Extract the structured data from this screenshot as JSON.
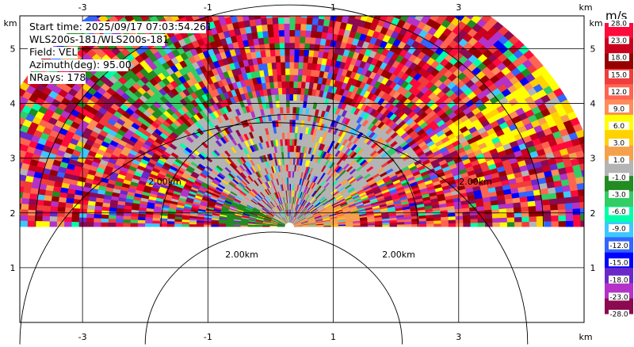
{
  "info": {
    "start_time": "Start time: 2025/09/17 07:03:54.261",
    "instrument": "WLS200s-181/WLS200s-181",
    "field": "Field: VEL",
    "azimuth": "Azimuth(deg): 95.00",
    "nrays": "NRays: 178"
  },
  "chart_data": {
    "type": "heatmap",
    "projection": "RHI",
    "x_unit": "km",
    "y_unit": "km",
    "x_ticks": [
      "-3",
      "-1",
      "1",
      "3"
    ],
    "y_ticks": [
      "1",
      "2",
      "3",
      "4",
      "5"
    ],
    "xlim": [
      -4.0,
      5.0
    ],
    "ylim": [
      0.0,
      5.6
    ],
    "origin": {
      "x": 0.3,
      "y": 1.75
    },
    "max_range_km": 5.0,
    "elevation_deg": [
      0,
      180
    ],
    "range_rings_km": [
      2,
      4
    ],
    "range_ring_labels": [
      "2.00km",
      "2.00km",
      "2.00km",
      "2.00km"
    ],
    "colorbar": {
      "unit": "m/s",
      "ticks": [
        "28.0",
        "23.0",
        "18.0",
        "15.0",
        "12.0",
        "9.0",
        "6.0",
        "3.0",
        "1.0",
        "-1.0",
        "-3.0",
        "-6.0",
        "-9.0",
        "-12.0",
        "-15.0",
        "-18.0",
        "-23.0",
        "-28.0"
      ],
      "colors": [
        "#ff0a3c",
        "#c8001e",
        "#960000",
        "#f03c3c",
        "#ff6450",
        "#ff8c5a",
        "#ffff00",
        "#ffd200",
        "#f5a04b",
        "#b4b4b4",
        "#228b22",
        "#32cd64",
        "#00ffaa",
        "#3cc8ff",
        "#3264ff",
        "#0000ff",
        "#6a28c8",
        "#b432c8",
        "#8c0a50"
      ]
    }
  }
}
